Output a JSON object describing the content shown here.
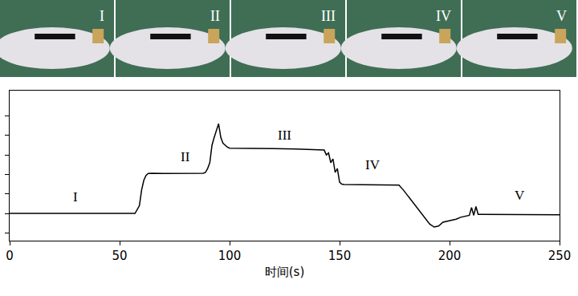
{
  "chart_data": {
    "type": "line",
    "x_label": "时间(s)",
    "x": [
      0,
      10,
      20,
      30,
      40,
      50,
      57,
      59,
      60,
      61,
      62,
      63,
      65,
      70,
      80,
      88,
      89,
      90,
      91,
      92,
      93,
      94,
      95,
      96,
      97,
      98,
      99,
      100,
      110,
      120,
      130,
      140,
      143,
      144,
      145,
      146,
      147,
      148,
      149,
      150,
      151,
      152,
      160,
      170,
      177,
      179,
      181,
      183,
      185,
      187,
      189,
      191,
      193,
      195,
      197,
      199,
      201,
      203,
      205,
      207,
      209,
      210,
      211,
      212,
      213,
      215,
      220,
      230,
      240,
      250
    ],
    "values": [
      1.0,
      1.0,
      1.0,
      1.0,
      1.0,
      1.0,
      1.0,
      1.4,
      2.2,
      2.7,
      2.95,
      3.05,
      3.06,
      3.05,
      3.05,
      3.06,
      3.1,
      3.3,
      3.6,
      4.5,
      4.9,
      5.3,
      5.6,
      4.9,
      4.6,
      4.5,
      4.4,
      4.35,
      4.35,
      4.33,
      4.3,
      4.28,
      4.25,
      4.0,
      4.1,
      3.6,
      3.8,
      3.1,
      3.3,
      2.6,
      2.5,
      2.48,
      2.48,
      2.47,
      2.45,
      2.2,
      1.9,
      1.6,
      1.3,
      1.0,
      0.7,
      0.45,
      0.3,
      0.35,
      0.55,
      0.6,
      0.65,
      0.7,
      0.8,
      0.85,
      0.9,
      1.3,
      0.9,
      1.35,
      0.95,
      0.95,
      0.95,
      0.95,
      0.94,
      0.93
    ],
    "color": "#000000",
    "xlim": [
      0,
      250
    ],
    "xticks": [
      0,
      50,
      100,
      150,
      200,
      250
    ],
    "ylim": [
      -0.4,
      7.3
    ],
    "yticks": [
      0,
      1,
      2,
      3,
      4,
      5,
      6
    ],
    "tick_labels": "x",
    "grid": false,
    "annotations": [
      {
        "text": "I",
        "x": 30,
        "y": 1.86
      },
      {
        "text": "II",
        "x": 80,
        "y": 3.9
      },
      {
        "text": "III",
        "x": 125,
        "y": 5.0
      },
      {
        "text": "IV",
        "x": 165,
        "y": 3.5
      },
      {
        "text": "V",
        "x": 232,
        "y": 1.94
      }
    ]
  }
}
